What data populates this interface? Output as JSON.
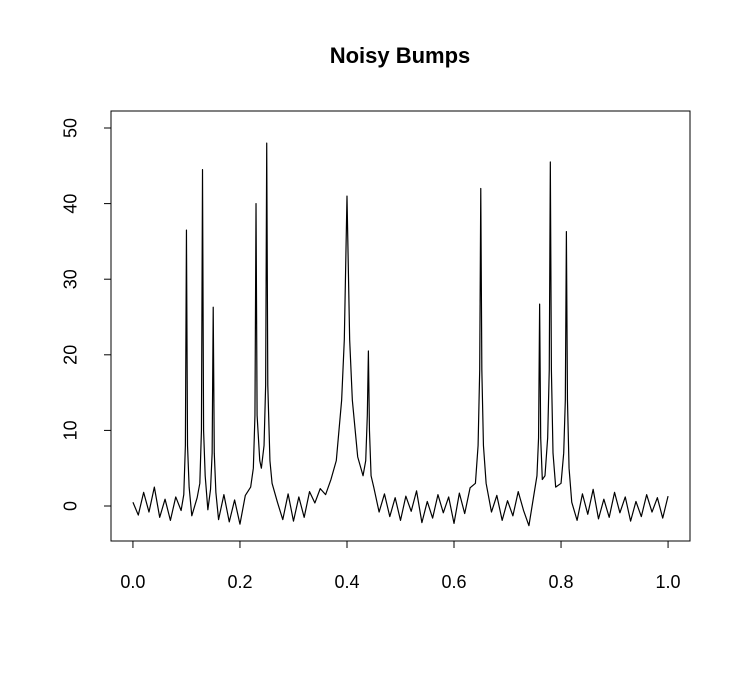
{
  "chart_data": {
    "type": "line",
    "title": "Noisy Bumps",
    "x": [
      0,
      0.01,
      0.02,
      0.03,
      0.04,
      0.05,
      0.06,
      0.07,
      0.08,
      0.09,
      0.095,
      0.098,
      0.1,
      0.102,
      0.105,
      0.11,
      0.12,
      0.125,
      0.128,
      0.13,
      0.132,
      0.135,
      0.14,
      0.145,
      0.148,
      0.15,
      0.152,
      0.155,
      0.16,
      0.17,
      0.18,
      0.19,
      0.2,
      0.21,
      0.22,
      0.225,
      0.228,
      0.23,
      0.232,
      0.237,
      0.24,
      0.245,
      0.248,
      0.25,
      0.252,
      0.256,
      0.26,
      0.27,
      0.28,
      0.29,
      0.3,
      0.31,
      0.32,
      0.33,
      0.34,
      0.35,
      0.36,
      0.37,
      0.38,
      0.39,
      0.395,
      0.4,
      0.405,
      0.41,
      0.42,
      0.43,
      0.435,
      0.438,
      0.44,
      0.442,
      0.445,
      0.45,
      0.46,
      0.47,
      0.48,
      0.49,
      0.5,
      0.51,
      0.52,
      0.53,
      0.54,
      0.55,
      0.56,
      0.57,
      0.58,
      0.59,
      0.6,
      0.61,
      0.62,
      0.63,
      0.64,
      0.645,
      0.648,
      0.65,
      0.652,
      0.655,
      0.66,
      0.67,
      0.68,
      0.69,
      0.7,
      0.71,
      0.72,
      0.73,
      0.74,
      0.75,
      0.755,
      0.758,
      0.76,
      0.762,
      0.765,
      0.77,
      0.775,
      0.778,
      0.78,
      0.782,
      0.785,
      0.79,
      0.8,
      0.805,
      0.808,
      0.81,
      0.812,
      0.815,
      0.82,
      0.83,
      0.84,
      0.85,
      0.86,
      0.87,
      0.88,
      0.89,
      0.9,
      0.91,
      0.92,
      0.93,
      0.94,
      0.95,
      0.96,
      0.97,
      0.98,
      0.99,
      1
    ],
    "values": [
      0.5,
      -1.2,
      1.8,
      -0.8,
      2.5,
      -1.5,
      0.9,
      -1.9,
      1.2,
      -0.6,
      1.5,
      8,
      36.5,
      8,
      2.5,
      -1.3,
      1.1,
      3,
      10,
      44.5,
      10,
      4,
      -0.5,
      2.2,
      7,
      26.3,
      7,
      1.8,
      -1.8,
      1.5,
      -2.1,
      0.8,
      -2.4,
      1.4,
      2.5,
      5,
      12,
      40,
      12,
      6,
      5,
      8,
      16,
      48,
      16,
      6,
      3,
      0.5,
      -1.8,
      1.6,
      -2,
      1.2,
      -1.5,
      1.9,
      0.4,
      2.3,
      1.5,
      3.5,
      6,
      14,
      22,
      41,
      22,
      14,
      6.5,
      4,
      6,
      12,
      20.5,
      10,
      4,
      2.5,
      -0.8,
      1.6,
      -1.4,
      1.1,
      -1.9,
      1.3,
      -0.7,
      2,
      -2.2,
      0.6,
      -1.6,
      1.5,
      -0.9,
      1.2,
      -2.3,
      1.7,
      -1,
      2.4,
      3,
      8,
      18,
      42,
      18,
      8,
      3,
      -0.8,
      1.4,
      -1.9,
      0.7,
      -1.3,
      1.9,
      -0.6,
      -2.6,
      1.8,
      4,
      9,
      26.7,
      9,
      3.5,
      4,
      9,
      18,
      45.5,
      18,
      7,
      2.5,
      3,
      7,
      14,
      36.3,
      14,
      5,
      0.5,
      -1.9,
      1.6,
      -1.1,
      2.2,
      -1.7,
      0.9,
      -1.5,
      1.8,
      -0.9,
      1.2,
      -2,
      0.6,
      -1.4,
      1.5,
      -0.8,
      1.1,
      -1.6,
      1.3
    ],
    "color": "#000000",
    "xlim": [
      -0.041,
      1.041
    ],
    "ylim": [
      -4.63,
      52.25
    ],
    "xticks": [
      {
        "value": 0,
        "label": "0.0"
      },
      0.2,
      0.4,
      0.6,
      0.8,
      {
        "value": 1,
        "label": "1.0"
      }
    ],
    "yticks": [
      0,
      10,
      20,
      30,
      40,
      50
    ]
  }
}
